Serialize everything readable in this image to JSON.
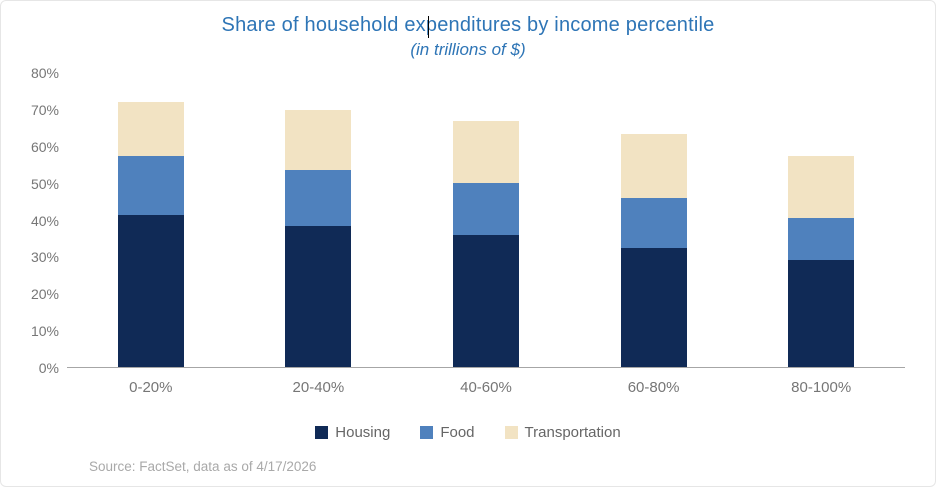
{
  "source": "Source: FactSet, data as of 4/17/2026",
  "chart_data": {
    "type": "bar",
    "stacked": true,
    "title": "Share of household expenditures by income percentile",
    "subtitle": "(in trillions of $)",
    "title_color": "#2e75b6",
    "categories": [
      "0-20%",
      "20-40%",
      "40-60%",
      "60-80%",
      "80-100%"
    ],
    "series": [
      {
        "name": "Housing",
        "color": "#102a56",
        "values": [
          41.5,
          38.5,
          36.0,
          32.5,
          29.0
        ]
      },
      {
        "name": "Food",
        "color": "#4f81bd",
        "values": [
          16.0,
          15.0,
          14.0,
          13.5,
          11.5
        ]
      },
      {
        "name": "Transportation",
        "color": "#f2e3c3",
        "values": [
          14.5,
          16.5,
          17.0,
          17.5,
          17.0
        ]
      }
    ],
    "y_axis": {
      "min": 0,
      "max": 80,
      "step": 10,
      "tick_suffix": "%"
    },
    "legend_position": "bottom",
    "gridlines": false
  }
}
